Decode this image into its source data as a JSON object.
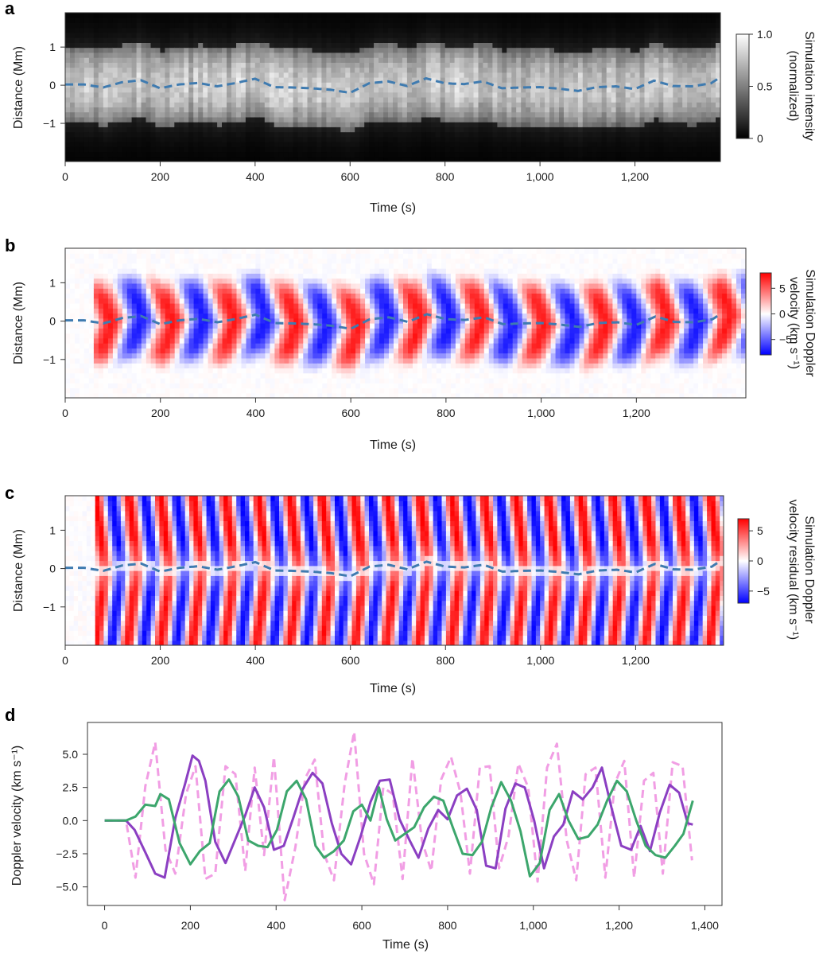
{
  "panels": [
    "a",
    "b",
    "c",
    "d"
  ],
  "chart_data": [
    {
      "panel": "a",
      "type": "heatmap",
      "xlabel": "Time (s)",
      "ylabel": "Distance (Mm)",
      "xlim": [
        0,
        1380
      ],
      "ylim": [
        -2,
        1.9
      ],
      "xticks": [
        0,
        200,
        400,
        600,
        800,
        1000,
        1200
      ],
      "xtick_labels": [
        "0",
        "200",
        "400",
        "600",
        "800",
        "1,000",
        "1,200"
      ],
      "yticks": [
        1,
        0,
        -1
      ],
      "ytick_labels": [
        "1",
        "0",
        "−1"
      ],
      "colorbar_label_lines": [
        "Simulation intensity",
        "(normalized)"
      ],
      "colorbar_ticks": [
        1.0,
        0.5,
        0
      ],
      "colorbar_tick_labels": [
        "1.0",
        "0.5",
        "0"
      ],
      "colormap": "grayscale",
      "cmap_colors": [
        "#000000",
        "#ffffff"
      ],
      "dashed_line_color": "#3f7bb0",
      "loop_half_width_mm": 1.0
    },
    {
      "panel": "b",
      "type": "heatmap",
      "xlabel": "Time (s)",
      "ylabel": "Distance (Mm)",
      "xlim": [
        0,
        1380
      ],
      "ylim": [
        -2,
        1.9
      ],
      "xticks": [
        0,
        200,
        400,
        600,
        800,
        1000,
        1200
      ],
      "xtick_labels": [
        "0",
        "200",
        "400",
        "600",
        "800",
        "1,000",
        "1,200"
      ],
      "yticks": [
        1,
        0,
        -1
      ],
      "ytick_labels": [
        "1",
        "0",
        "−1"
      ],
      "colorbar_label_lines": [
        "Simulation Doppler",
        "velocity (km s⁻¹)"
      ],
      "colorbar_ticks": [
        5,
        0,
        -5
      ],
      "colorbar_tick_labels": [
        "5",
        "0",
        "−5"
      ],
      "colorbar_range": [
        -8,
        8
      ],
      "colormap": "blue-white-red",
      "cmap_colors": [
        "#0000ff",
        "#ffffff",
        "#ff0000"
      ],
      "dashed_line_color": "#3f7bb0",
      "oscillation_period_s": 130
    },
    {
      "panel": "c",
      "type": "heatmap",
      "xlabel": "Time (s)",
      "ylabel": "Distance (Mm)",
      "xlim": [
        0,
        1380
      ],
      "ylim": [
        -2,
        1.9
      ],
      "xticks": [
        0,
        200,
        400,
        600,
        800,
        1000,
        1200
      ],
      "xtick_labels": [
        "0",
        "200",
        "400",
        "600",
        "800",
        "1,000",
        "1,200"
      ],
      "yticks": [
        1,
        0,
        -1
      ],
      "ytick_labels": [
        "1",
        "0",
        "−1"
      ],
      "colorbar_label_lines": [
        "Simulation Doppler",
        "velocity residual (km s⁻¹)"
      ],
      "colorbar_ticks": [
        5,
        0,
        -5
      ],
      "colorbar_tick_labels": [
        "5",
        "0",
        "−5"
      ],
      "colorbar_range": [
        -7,
        7
      ],
      "colormap": "blue-white-red",
      "cmap_colors": [
        "#0000ff",
        "#ffffff",
        "#ff0000"
      ],
      "dashed_line_color": "#3f7bb0",
      "oscillation_period_s": 68
    },
    {
      "panel": "d",
      "type": "line",
      "xlabel": "Time (s)",
      "ylabel": "Doppler velocity (km s⁻¹)",
      "xlim": [
        -40,
        1440
      ],
      "ylim": [
        -6.4,
        7.4
      ],
      "xticks": [
        0,
        200,
        400,
        600,
        800,
        1000,
        1200,
        1400
      ],
      "xtick_labels": [
        "0",
        "200",
        "400",
        "600",
        "800",
        "1,000",
        "1,200",
        "1,400"
      ],
      "yticks": [
        5,
        2.5,
        0,
        -2.5,
        -5
      ],
      "ytick_labels": [
        "5.0",
        "2.5",
        "0.0",
        "−2.5",
        "−5.0"
      ],
      "series": [
        {
          "color": "#f19ee4",
          "dashed": true,
          "x": [
            0,
            50,
            72,
            95,
            118,
            142,
            165,
            190,
            212,
            235,
            258,
            282,
            305,
            328,
            350,
            372,
            395,
            420,
            445,
            468,
            490,
            512,
            535,
            560,
            582,
            605,
            628,
            650,
            672,
            695,
            718,
            740,
            762,
            785,
            808,
            830,
            852,
            875,
            898,
            920,
            942,
            965,
            988,
            1010,
            1032,
            1055,
            1078,
            1100,
            1122,
            1145,
            1168,
            1190,
            1212,
            1235,
            1258,
            1280,
            1302,
            1325,
            1348,
            1370
          ],
          "y": [
            0,
            0,
            -4.3,
            2.6,
            5.9,
            -2.2,
            -4.0,
            2.0,
            4.1,
            -4.4,
            -4.0,
            4.1,
            3.5,
            -3.8,
            4.0,
            -2.6,
            4.8,
            -6.0,
            -2.0,
            3.2,
            4.6,
            -2.5,
            -4.5,
            2.8,
            6.7,
            -2.5,
            -4.8,
            2.5,
            2.0,
            -4.4,
            4.7,
            -1.5,
            -3.8,
            3.1,
            4.8,
            2.1,
            -4.0,
            4.0,
            4.1,
            -3.6,
            -1.2,
            4.3,
            2.5,
            -4.6,
            4.0,
            5.8,
            -1.5,
            -4.5,
            3.5,
            4.0,
            -4.3,
            2.8,
            4.5,
            -4.3,
            3.0,
            3.6,
            -4.0,
            4.4,
            4.1,
            -3.0
          ]
        },
        {
          "color": "#8b3fc2",
          "dashed": false,
          "x": [
            0,
            50,
            70,
            95,
            118,
            140,
            165,
            188,
            205,
            220,
            235,
            258,
            282,
            305,
            328,
            350,
            372,
            395,
            418,
            440,
            462,
            485,
            508,
            530,
            552,
            575,
            598,
            620,
            642,
            665,
            688,
            710,
            732,
            755,
            778,
            800,
            822,
            845,
            868,
            890,
            912,
            935,
            958,
            980,
            1002,
            1025,
            1048,
            1070,
            1092,
            1115,
            1138,
            1160,
            1182,
            1205,
            1228,
            1250,
            1272,
            1295,
            1318,
            1340,
            1360,
            1372
          ],
          "y": [
            0,
            0,
            -0.7,
            -2.4,
            -4.0,
            -4.3,
            0.2,
            2.8,
            4.9,
            4.5,
            3.0,
            -1.6,
            -3.2,
            -1.4,
            0.4,
            2.5,
            1.0,
            -2.2,
            -1.9,
            0.2,
            2.4,
            3.6,
            2.8,
            -0.2,
            -2.5,
            -3.3,
            -1.1,
            1.4,
            3.0,
            3.1,
            0.1,
            -1.4,
            -2.8,
            -0.6,
            0.8,
            0.1,
            1.9,
            2.4,
            0.8,
            -3.4,
            -3.6,
            0.9,
            2.8,
            2.5,
            0.0,
            -3.6,
            -1.2,
            -0.3,
            2.2,
            1.6,
            2.5,
            4.0,
            1.0,
            -1.9,
            -2.2,
            -0.4,
            -2.3,
            0.6,
            2.7,
            2.1,
            -0.2,
            -0.3
          ]
        },
        {
          "color": "#3ca66c",
          "dashed": false,
          "x": [
            0,
            50,
            72,
            95,
            118,
            130,
            150,
            175,
            200,
            222,
            245,
            268,
            290,
            312,
            335,
            358,
            380,
            402,
            425,
            448,
            470,
            492,
            512,
            535,
            558,
            580,
            600,
            620,
            640,
            658,
            678,
            700,
            722,
            745,
            768,
            790,
            812,
            835,
            858,
            880,
            902,
            925,
            948,
            970,
            992,
            1015,
            1038,
            1060,
            1082,
            1105,
            1128,
            1150,
            1172,
            1195,
            1218,
            1240,
            1262,
            1285,
            1308,
            1330,
            1350,
            1372
          ],
          "y": [
            0,
            0,
            0.3,
            1.2,
            1.1,
            2.0,
            1.6,
            -1.7,
            -3.3,
            -2.3,
            -1.7,
            2.2,
            3.1,
            1.8,
            -1.5,
            -1.9,
            -2.0,
            -0.7,
            2.2,
            3.0,
            1.6,
            -1.9,
            -2.8,
            -2.3,
            -1.5,
            0.7,
            1.2,
            0.0,
            2.5,
            0.1,
            -1.5,
            -1.0,
            -0.5,
            1.0,
            1.8,
            1.5,
            -0.5,
            -2.5,
            -2.6,
            -1.6,
            1.0,
            2.9,
            1.5,
            -0.8,
            -4.2,
            -3.2,
            0.8,
            2.0,
            0.0,
            -1.4,
            -1.2,
            -0.3,
            1.5,
            3.0,
            2.2,
            0.0,
            -1.9,
            -2.6,
            -2.8,
            -1.9,
            -1.0,
            1.5
          ]
        }
      ]
    }
  ],
  "dashed_center_line": {
    "t": [
      0,
      40,
      80,
      120,
      160,
      200,
      240,
      280,
      320,
      360,
      400,
      440,
      480,
      520,
      560,
      600,
      640,
      680,
      720,
      760,
      800,
      840,
      880,
      920,
      960,
      1000,
      1040,
      1080,
      1120,
      1160,
      1200,
      1240,
      1280,
      1320,
      1360,
      1375
    ],
    "y": [
      0.02,
      0.02,
      -0.06,
      0.08,
      0.13,
      -0.08,
      0.02,
      0.06,
      -0.03,
      0.06,
      0.17,
      -0.05,
      -0.06,
      -0.08,
      -0.12,
      -0.2,
      0.05,
      0.1,
      -0.02,
      0.18,
      0.05,
      0.03,
      0.1,
      -0.08,
      -0.06,
      -0.05,
      -0.09,
      -0.15,
      -0.05,
      -0.03,
      -0.1,
      0.12,
      -0.02,
      -0.03,
      0.05,
      0.17
    ]
  }
}
